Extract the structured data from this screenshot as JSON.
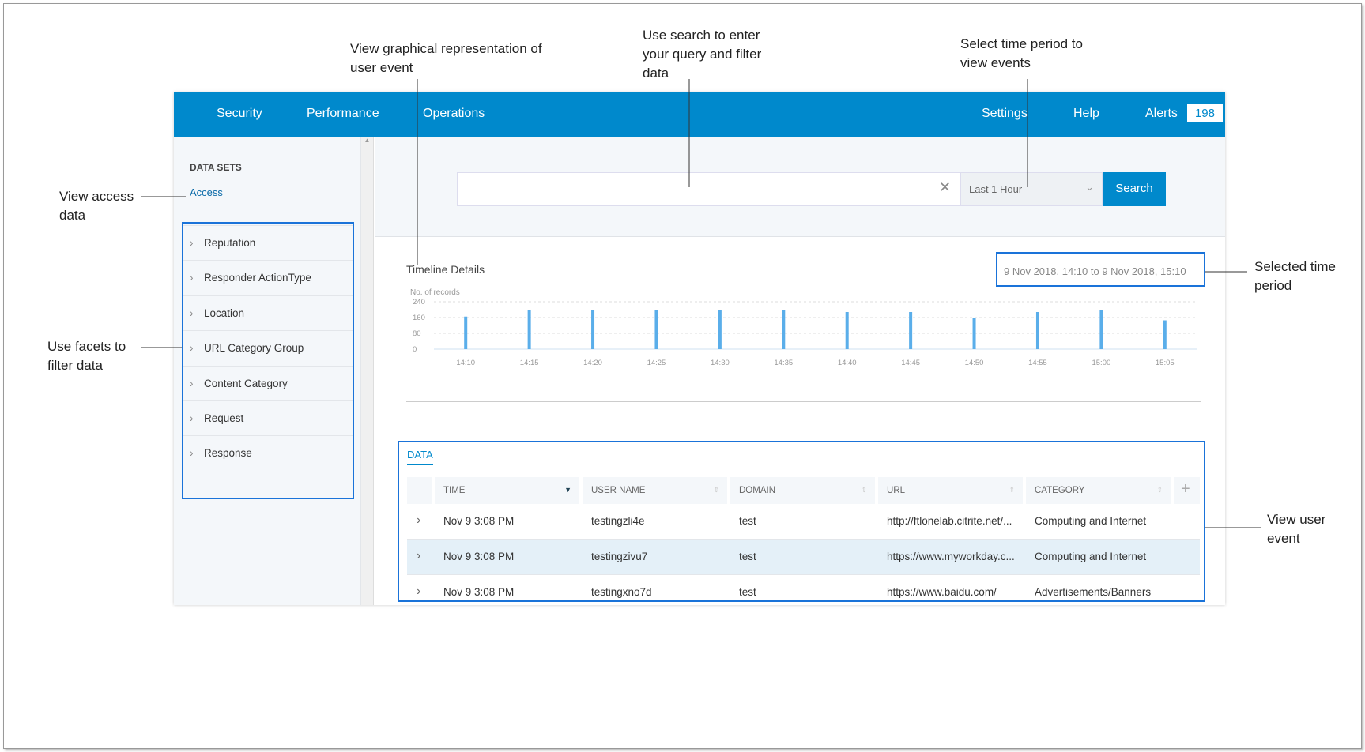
{
  "annotations": {
    "graph": "View graphical representation of user event",
    "search": "Use search to enter your query and filter data",
    "time": "Select time period to view events",
    "access": "View access data",
    "facets": "Use facets to filter data",
    "selected": "Selected time period",
    "event": "View user event"
  },
  "nav": {
    "items": [
      "Security",
      "Performance",
      "Operations"
    ],
    "settings": "Settings",
    "help": "Help",
    "alerts": "Alerts",
    "alert_count": "198",
    "color": "#0089cc"
  },
  "sidebar": {
    "heading": "DATA SETS",
    "link": "Access",
    "facets": [
      "Reputation",
      "Responder ActionType",
      "Location",
      "URL Category Group",
      "Content Category",
      "Request",
      "Response"
    ]
  },
  "search": {
    "value": "",
    "clear_icon": "close-icon",
    "period": "Last 1 Hour",
    "button": "Search"
  },
  "timeline": {
    "title": "Timeline Details",
    "range": "9 Nov 2018, 14:10 to 9 Nov 2018, 15:10"
  },
  "chart_data": {
    "type": "bar",
    "ylabel": "No. of records",
    "categories": [
      "14:10",
      "14:15",
      "14:20",
      "14:25",
      "14:30",
      "14:35",
      "14:40",
      "14:45",
      "14:50",
      "14:55",
      "15:00",
      "15:05"
    ],
    "values": [
      165,
      197,
      197,
      197,
      197,
      197,
      188,
      188,
      157,
      188,
      197,
      146
    ],
    "yticks": [
      "0",
      "80",
      "160",
      "240"
    ],
    "ylim": [
      0,
      240
    ],
    "grid": true,
    "color": "#5aaeea"
  },
  "data": {
    "tab": "DATA",
    "columns": [
      "TIME",
      "USER NAME",
      "DOMAIN",
      "URL",
      "CATEGORY"
    ],
    "rows": [
      [
        "Nov 9 3:08 PM",
        "testingzli4e",
        "test",
        "http://ftlonelab.citrite.net/...",
        "Computing and Internet"
      ],
      [
        "Nov 9 3:08 PM",
        "testingzivu7",
        "test",
        "https://www.myworkday.c...",
        "Computing and Internet"
      ],
      [
        "Nov 9 3:08 PM",
        "testingxno7d",
        "test",
        "https://www.baidu.com/",
        "Advertisements/Banners"
      ]
    ]
  }
}
